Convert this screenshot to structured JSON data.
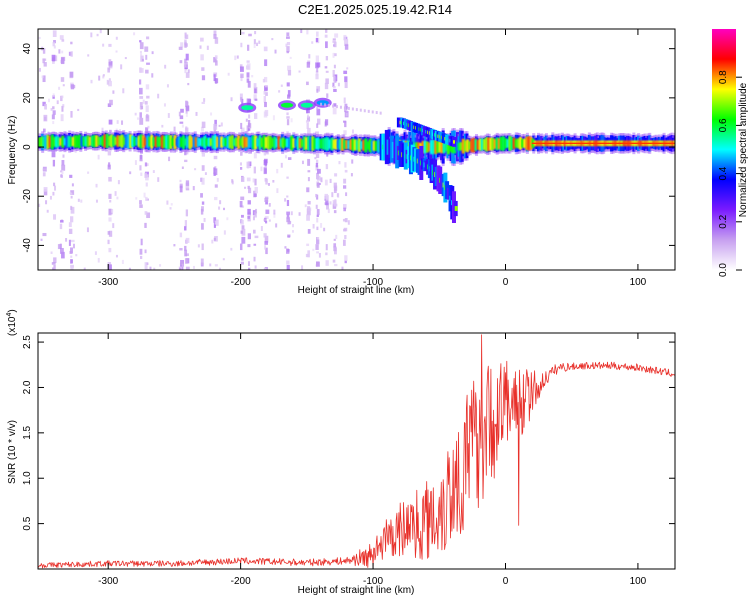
{
  "title": "C2E1.2025.025.19.42.R14",
  "chart_data": [
    {
      "type": "heatmap",
      "xlabel": "Height of straight line (km)",
      "ylabel": "Frequency (Hz)",
      "xlim": [
        -353,
        128
      ],
      "ylim": [
        -50,
        48
      ],
      "xticks": [
        -300,
        -200,
        -100,
        0,
        100
      ],
      "xtick_labels": [
        "-300",
        "-200",
        "-100",
        "0",
        "100"
      ],
      "yticks": [
        -40,
        -20,
        0,
        20,
        40
      ],
      "ytick_labels": [
        "-40",
        "-20",
        "0",
        "20",
        "40"
      ],
      "colorbar": {
        "label": "Normalized spectral amplitude",
        "range": [
          0.0,
          1.0
        ],
        "ticks": [
          0.0,
          0.2,
          0.4,
          0.6,
          0.8
        ],
        "tick_labels": [
          "0.0",
          "0.2",
          "0.4",
          "0.6",
          "0.8"
        ],
        "colormap": [
          "#ffffff",
          "#c7a0f0",
          "#7a1bff",
          "#0000ff",
          "#00ffff",
          "#00ff00",
          "#ffff00",
          "#ff0000",
          "#ff00c0"
        ]
      },
      "main_band": [
        [
          -353,
          2
        ],
        [
          -300,
          2.5
        ],
        [
          -250,
          2
        ],
        [
          -200,
          2
        ],
        [
          -150,
          1.5
        ],
        [
          -120,
          1
        ],
        [
          -100,
          0.5
        ],
        [
          -80,
          0
        ],
        [
          -40,
          0
        ],
        [
          -20,
          1
        ],
        [
          0,
          1.5
        ],
        [
          50,
          1.5
        ],
        [
          100,
          1.5
        ],
        [
          128,
          1.5
        ]
      ],
      "side_features": [
        {
          "x": -195,
          "y": 16,
          "v": 0.55
        },
        {
          "x": -165,
          "y": 17,
          "v": 0.6
        },
        {
          "x": -150,
          "y": 17,
          "v": 0.55
        },
        {
          "x": -138,
          "y": 18,
          "v": 0.45
        }
      ],
      "dispersion_branch": [
        [
          -90,
          0
        ],
        [
          -80,
          -3
        ],
        [
          -70,
          -5
        ],
        [
          -60,
          -8
        ],
        [
          -50,
          -14
        ],
        [
          -45,
          -18
        ],
        [
          -40,
          -25
        ]
      ],
      "upper_branch": [
        [
          -80,
          10
        ],
        [
          -70,
          8
        ],
        [
          -60,
          6
        ],
        [
          -50,
          4
        ],
        [
          -40,
          2
        ]
      ],
      "grid": false
    },
    {
      "type": "line",
      "xlabel": "Height of straight line (km)",
      "ylabel": "SNR (10 * v/v)",
      "y_multiplier_label": "(x10",
      "y_multiplier_exponent": "4",
      "xlim": [
        -353,
        128
      ],
      "ylim": [
        0,
        2.6
      ],
      "xticks": [
        -300,
        -200,
        -100,
        0,
        100
      ],
      "xtick_labels": [
        "-300",
        "-200",
        "-100",
        "0",
        "100"
      ],
      "yticks": [
        0.5,
        1.0,
        1.5,
        2.0,
        2.5
      ],
      "ytick_labels": [
        "0.5",
        "1.0",
        "1.5",
        "2.0",
        "2.5"
      ],
      "color": "#e8302a",
      "envelope": [
        [
          -353,
          0.04
        ],
        [
          -300,
          0.06
        ],
        [
          -250,
          0.06
        ],
        [
          -200,
          0.09
        ],
        [
          -150,
          0.07
        ],
        [
          -120,
          0.09
        ],
        [
          -100,
          0.15
        ],
        [
          -90,
          0.3
        ],
        [
          -80,
          0.4
        ],
        [
          -70,
          0.45
        ],
        [
          -60,
          0.5
        ],
        [
          -50,
          0.6
        ],
        [
          -40,
          0.85
        ],
        [
          -30,
          1.1
        ],
        [
          -20,
          1.4
        ],
        [
          -10,
          1.55
        ],
        [
          0,
          1.75
        ],
        [
          10,
          1.8
        ],
        [
          20,
          1.9
        ],
        [
          30,
          2.1
        ],
        [
          40,
          2.22
        ],
        [
          60,
          2.24
        ],
        [
          80,
          2.24
        ],
        [
          100,
          2.22
        ],
        [
          128,
          2.15
        ]
      ],
      "noise_amp": [
        [
          -353,
          0.03
        ],
        [
          -120,
          0.04
        ],
        [
          -100,
          0.15
        ],
        [
          -80,
          0.3
        ],
        [
          -60,
          0.45
        ],
        [
          -40,
          0.7
        ],
        [
          -20,
          0.8
        ],
        [
          0,
          0.55
        ],
        [
          15,
          0.35
        ],
        [
          30,
          0.08
        ],
        [
          50,
          0.04
        ],
        [
          128,
          0.04
        ]
      ],
      "spikes": [
        {
          "x": -18,
          "v": 2.58
        },
        {
          "x": 10,
          "v": 0.48
        }
      ],
      "grid": false
    }
  ]
}
